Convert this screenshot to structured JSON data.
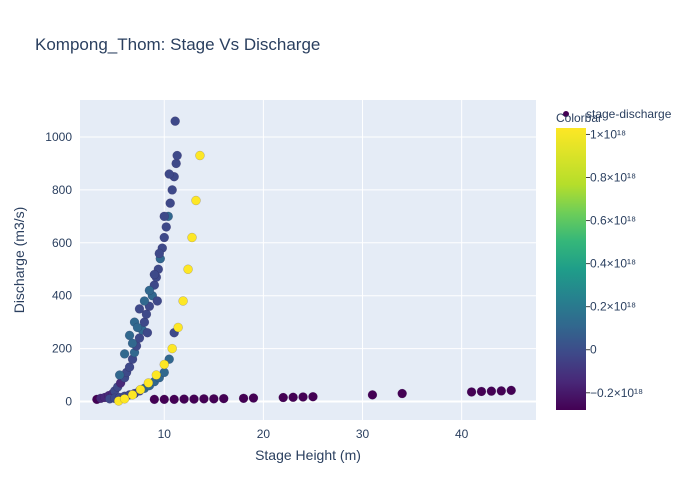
{
  "chart_data": {
    "type": "scatter",
    "title": "Kompong_Thom: Stage Vs Discharge",
    "xlabel": "Stage Height (m)",
    "ylabel": "Discharge (m3/s)",
    "xlim": [
      1.5,
      47.5
    ],
    "ylim": [
      -70,
      1140
    ],
    "x_ticks": [
      10,
      20,
      30,
      40
    ],
    "y_ticks": [
      0,
      200,
      400,
      600,
      800,
      1000
    ],
    "grid": true,
    "legend": {
      "placement": "top-right",
      "entries": [
        "stage-discharge"
      ]
    },
    "colorbar": {
      "title": "Colorbar",
      "range": [
        -2.8e+17,
        1.03e+18
      ],
      "tick_values": [
        -2e+17,
        0,
        2e+17,
        4e+17,
        6e+17,
        8e+17,
        1e+18
      ],
      "tick_labels": [
        "−0.2×10¹⁸",
        "0",
        "0.2×10¹⁸",
        "0.4×10¹⁸",
        "0.6×10¹⁸",
        "0.8×10¹⁸",
        "1×10¹⁸"
      ],
      "colorscale": "Viridis"
    },
    "series": [
      {
        "name": "stage-discharge",
        "points": [
          [
            3.2,
            8,
            0.05
          ],
          [
            3.6,
            12,
            0.08
          ],
          [
            4.0,
            15,
            0.1
          ],
          [
            4.4,
            22,
            0.12
          ],
          [
            4.8,
            30,
            0.15
          ],
          [
            5.0,
            40,
            0.18
          ],
          [
            5.3,
            55,
            0.2
          ],
          [
            5.6,
            70,
            0.15
          ],
          [
            6.0,
            90,
            0.22
          ],
          [
            6.2,
            110,
            0.18
          ],
          [
            6.5,
            130,
            0.25
          ],
          [
            6.8,
            160,
            0.2
          ],
          [
            7.0,
            185,
            0.28
          ],
          [
            7.2,
            210,
            0.22
          ],
          [
            7.5,
            240,
            0.25
          ],
          [
            7.8,
            270,
            0.3
          ],
          [
            8.0,
            300,
            0.2
          ],
          [
            8.2,
            330,
            0.26
          ],
          [
            8.5,
            360,
            0.22
          ],
          [
            8.8,
            400,
            0.28
          ],
          [
            9.0,
            440,
            0.2
          ],
          [
            9.2,
            470,
            0.25
          ],
          [
            9.4,
            500,
            0.22
          ],
          [
            9.6,
            540,
            0.3
          ],
          [
            9.8,
            580,
            0.18
          ],
          [
            10.0,
            620,
            0.24
          ],
          [
            10.2,
            660,
            0.2
          ],
          [
            10.4,
            700,
            0.28
          ],
          [
            10.6,
            750,
            0.2
          ],
          [
            10.8,
            800,
            0.25
          ],
          [
            11.0,
            850,
            0.22
          ],
          [
            11.2,
            900,
            0.2
          ],
          [
            11.3,
            930,
            0.18
          ],
          [
            11.1,
            1060,
            0.24
          ],
          [
            6.0,
            180,
            0.3
          ],
          [
            6.5,
            250,
            0.28
          ],
          [
            7.0,
            300,
            0.3
          ],
          [
            7.5,
            350,
            0.25
          ],
          [
            8.0,
            380,
            0.28
          ],
          [
            8.5,
            420,
            0.3
          ],
          [
            9.0,
            480,
            0.26
          ],
          [
            9.5,
            560,
            0.22
          ],
          [
            10.0,
            700,
            0.2
          ],
          [
            10.5,
            860,
            0.18
          ],
          [
            5.5,
            100,
            0.3
          ],
          [
            6.8,
            220,
            0.32
          ],
          [
            7.3,
            280,
            0.3
          ],
          [
            8.3,
            260,
            0.25
          ],
          [
            9.3,
            380,
            0.22
          ],
          [
            4.5,
            10,
            0.2
          ],
          [
            5.0,
            12,
            0.2
          ],
          [
            5.5,
            15,
            0.22
          ],
          [
            6.0,
            20,
            0.24
          ],
          [
            6.5,
            25,
            0.25
          ],
          [
            7.0,
            30,
            0.26
          ],
          [
            7.5,
            40,
            0.27
          ],
          [
            8.0,
            50,
            0.28
          ],
          [
            8.5,
            60,
            0.3
          ],
          [
            9.0,
            75,
            0.29
          ],
          [
            9.5,
            90,
            0.3
          ],
          [
            10.0,
            110,
            0.29
          ],
          [
            10.5,
            160,
            0.28
          ],
          [
            11.0,
            260,
            0.2
          ],
          [
            5.4,
            2,
            1.0
          ],
          [
            6.0,
            10,
            1.0
          ],
          [
            6.8,
            25,
            1.0
          ],
          [
            7.6,
            45,
            1.0
          ],
          [
            8.4,
            70,
            1.0
          ],
          [
            9.2,
            100,
            1.0
          ],
          [
            10.0,
            140,
            1.0
          ],
          [
            10.8,
            200,
            1.0
          ],
          [
            11.4,
            280,
            1.0
          ],
          [
            11.9,
            380,
            1.0
          ],
          [
            12.4,
            500,
            1.0
          ],
          [
            12.8,
            620,
            1.0
          ],
          [
            13.2,
            760,
            1.0
          ],
          [
            13.6,
            930,
            1.0
          ],
          [
            9.0,
            8,
            0.05
          ],
          [
            10.0,
            8,
            0.05
          ],
          [
            11.0,
            8,
            0.05
          ],
          [
            12.0,
            9,
            0.05
          ],
          [
            13.0,
            9,
            0.05
          ],
          [
            14.0,
            10,
            0.05
          ],
          [
            15.0,
            10,
            0.05
          ],
          [
            16.0,
            11,
            0.05
          ],
          [
            18.0,
            12,
            0.05
          ],
          [
            19.0,
            13,
            0.05
          ],
          [
            22.0,
            15,
            0.05
          ],
          [
            23.0,
            16,
            0.05
          ],
          [
            24.0,
            17,
            0.05
          ],
          [
            25.0,
            18,
            0.05
          ],
          [
            31.0,
            25,
            0.05
          ],
          [
            34.0,
            30,
            0.05
          ],
          [
            41.0,
            36,
            0.05
          ],
          [
            42.0,
            38,
            0.05
          ],
          [
            43.0,
            39,
            0.05
          ],
          [
            44.0,
            40,
            0.05
          ],
          [
            45.0,
            42,
            0.05
          ]
        ]
      }
    ]
  }
}
